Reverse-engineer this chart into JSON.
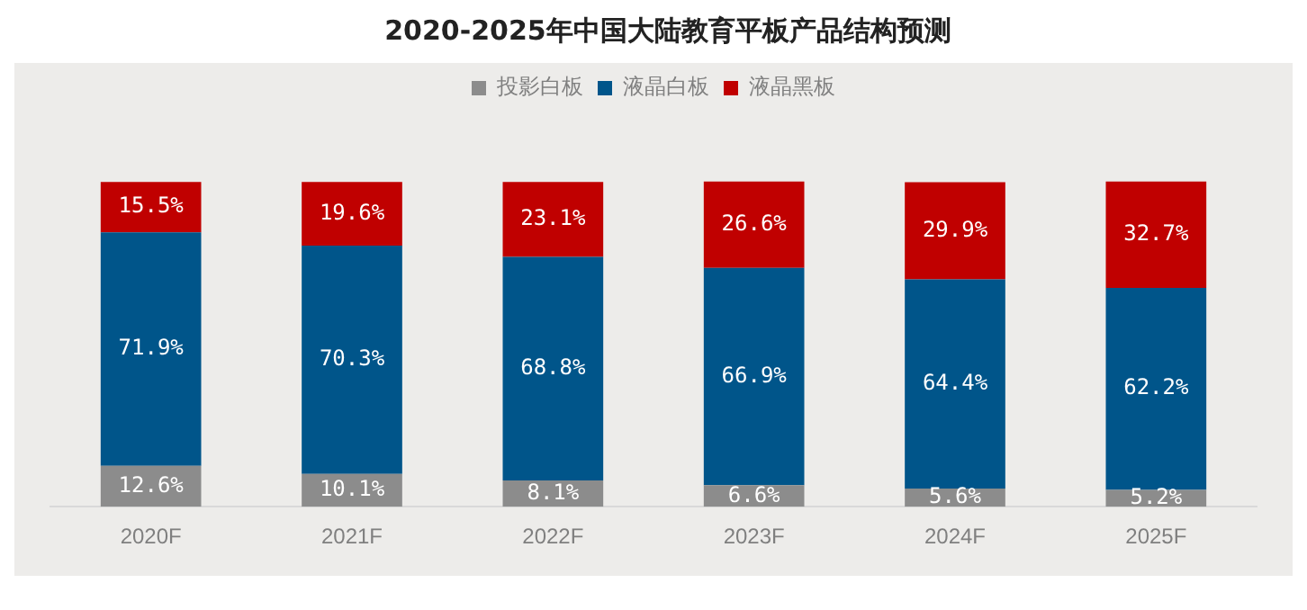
{
  "chart_data": {
    "type": "bar",
    "stacked": true,
    "title": "2020-2025年中国大陆教育平板产品结构预测",
    "categories": [
      "2020F",
      "2021F",
      "2022F",
      "2023F",
      "2024F",
      "2025F"
    ],
    "series": [
      {
        "name": "投影白板",
        "color": "#8c8c8c",
        "values": [
          12.6,
          10.1,
          8.1,
          6.6,
          5.6,
          5.2
        ],
        "value_labels": [
          "12.6%",
          "10.1%",
          "8.1%",
          "6.6%",
          "5.6%",
          "5.2%"
        ]
      },
      {
        "name": "液晶白板",
        "color": "#00558a",
        "values": [
          71.9,
          70.3,
          68.8,
          66.9,
          64.4,
          62.2
        ],
        "value_labels": [
          "71.9%",
          "70.3%",
          "68.8%",
          "66.9%",
          "64.4%",
          "62.2%"
        ]
      },
      {
        "name": "液晶黑板",
        "color": "#c00000",
        "values": [
          15.5,
          19.6,
          23.1,
          26.6,
          29.9,
          32.7
        ],
        "value_labels": [
          "15.5%",
          "19.6%",
          "23.1%",
          "26.6%",
          "29.9%",
          "32.7%"
        ]
      }
    ],
    "legend": "top",
    "grid": false
  }
}
